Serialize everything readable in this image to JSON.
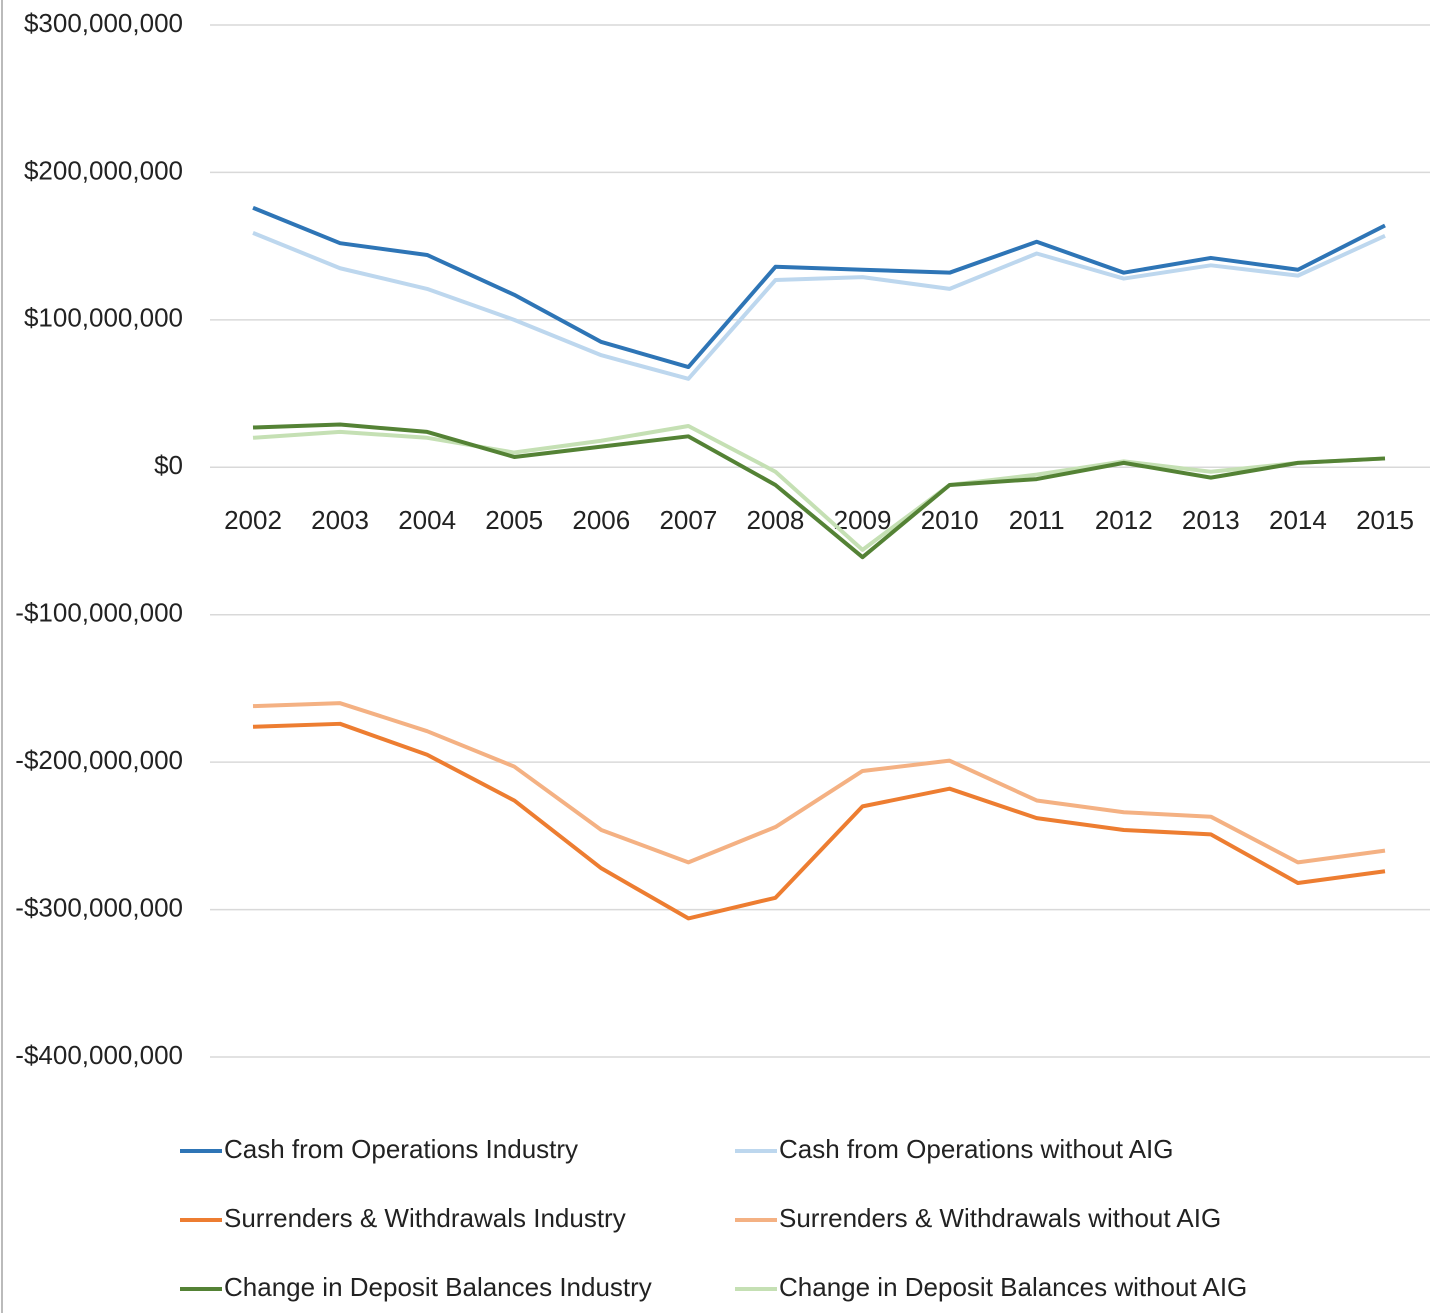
{
  "chart_data": {
    "type": "line",
    "categories": [
      "2002",
      "2003",
      "2004",
      "2005",
      "2006",
      "2007",
      "2008",
      "2009",
      "2010",
      "2011",
      "2012",
      "2013",
      "2014",
      "2015"
    ],
    "series": [
      {
        "name": "Cash from Operations  Industry",
        "color": "#2e75b6",
        "values": [
          176000000,
          152000000,
          144000000,
          117000000,
          85000000,
          68000000,
          136000000,
          134000000,
          132000000,
          153000000,
          132000000,
          142000000,
          134000000,
          164000000
        ]
      },
      {
        "name": "Cash from Operations  without AIG",
        "color": "#bdd7ee",
        "values": [
          159000000,
          135000000,
          121000000,
          100000000,
          76000000,
          60000000,
          127000000,
          129000000,
          121000000,
          145000000,
          128000000,
          137000000,
          130000000,
          157000000
        ]
      },
      {
        "name": "Surrenders & Withdrawals  Industry",
        "color": "#ed7d31",
        "values": [
          -176000000,
          -174000000,
          -195000000,
          -226000000,
          -272000000,
          -306000000,
          -292000000,
          -230000000,
          -218000000,
          -238000000,
          -246000000,
          -249000000,
          -282000000,
          -274000000
        ]
      },
      {
        "name": "Surrenders & Withdrawals  without AIG",
        "color": "#f4b183",
        "values": [
          -162000000,
          -160000000,
          -179000000,
          -203000000,
          -246000000,
          -268000000,
          -244000000,
          -206000000,
          -199000000,
          -226000000,
          -234000000,
          -237000000,
          -268000000,
          -260000000
        ]
      },
      {
        "name": "Change in Deposit Balances  Industry",
        "color": "#548235",
        "values": [
          27000000,
          29000000,
          24000000,
          7000000,
          14000000,
          21000000,
          -12000000,
          -61000000,
          -12000000,
          -8000000,
          3000000,
          -7000000,
          3000000,
          6000000
        ]
      },
      {
        "name": "Change in Deposit Balances  without AIG",
        "color": "#c5e0b4",
        "values": [
          20000000,
          24000000,
          20000000,
          10000000,
          18000000,
          28000000,
          -3000000,
          -56000000,
          -12000000,
          -5000000,
          4000000,
          -3000000,
          3000000,
          6000000
        ]
      }
    ],
    "ylim": [
      -400000000,
      300000000
    ],
    "yticks": [
      {
        "value": 300000000,
        "label": "$300,000,000"
      },
      {
        "value": 200000000,
        "label": "$200,000,000"
      },
      {
        "value": 100000000,
        "label": "$100,000,000"
      },
      {
        "value": 0,
        "label": "$0"
      },
      {
        "value": -100000000,
        "label": "-$100,000,000"
      },
      {
        "value": -200000000,
        "label": "-$200,000,000"
      },
      {
        "value": -300000000,
        "label": "-$300,000,000"
      },
      {
        "value": -400000000,
        "label": "-$400,000,000"
      }
    ],
    "grid": true,
    "legend": "bottom"
  }
}
